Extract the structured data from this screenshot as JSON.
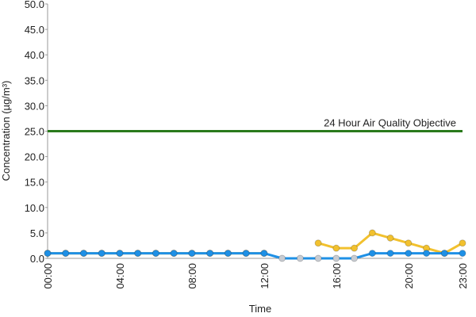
{
  "chart_data": {
    "type": "line",
    "x_label": "Time",
    "y_label": "Concentration (µg/m³)",
    "categories": [
      "00:00",
      null,
      null,
      null,
      "04:00",
      null,
      null,
      null,
      "08:00",
      null,
      null,
      null,
      "12:00",
      null,
      null,
      null,
      "16:00",
      null,
      null,
      null,
      "20:00",
      null,
      null,
      "23:00"
    ],
    "series": [
      {
        "color": "#f2c12e",
        "values": [
          1,
          1,
          1,
          1,
          1,
          1,
          1,
          1,
          1,
          1,
          1,
          1,
          1,
          null,
          null,
          3,
          2,
          2,
          5,
          4,
          3,
          2,
          1,
          3
        ]
      },
      {
        "color": "#1e90e6",
        "values": [
          1,
          1,
          1,
          1,
          1,
          1,
          1,
          1,
          1,
          1,
          1,
          1,
          1,
          0,
          0,
          0,
          0,
          0,
          1,
          1,
          1,
          1,
          1,
          1
        ],
        "marker_colors": [
          "#1e90e6",
          "#1e90e6",
          "#1e90e6",
          "#1e90e6",
          "#1e90e6",
          "#1e90e6",
          "#1e90e6",
          "#1e90e6",
          "#1e90e6",
          "#1e90e6",
          "#1e90e6",
          "#1e90e6",
          "#1e90e6",
          "#c8ccd2",
          "#c8ccd2",
          "#c8ccd2",
          "#c8ccd2",
          "#c8ccd2",
          "#1e90e6",
          "#1e90e6",
          "#1e90e6",
          "#1e90e6",
          "#1e90e6",
          "#1e90e6"
        ]
      }
    ],
    "reference_line": {
      "value": 25,
      "label": "24 Hour Air Quality Objective",
      "color": "#2a7a1c"
    },
    "ylim": [
      0,
      50
    ],
    "yticks": [
      {
        "value": 0,
        "label": "0.0"
      },
      {
        "value": 5,
        "label": "5.0"
      },
      {
        "value": 10,
        "label": "10.0"
      },
      {
        "value": 15,
        "label": "15.0"
      },
      {
        "value": 20,
        "label": "20.0"
      },
      {
        "value": 25,
        "label": "25.0"
      },
      {
        "value": 30,
        "label": "30.0"
      },
      {
        "value": 35,
        "label": "35.0"
      },
      {
        "value": 40,
        "label": "40.0"
      },
      {
        "value": 45,
        "label": "45.0"
      },
      {
        "value": 50,
        "label": "50.0"
      }
    ],
    "grid": false
  }
}
